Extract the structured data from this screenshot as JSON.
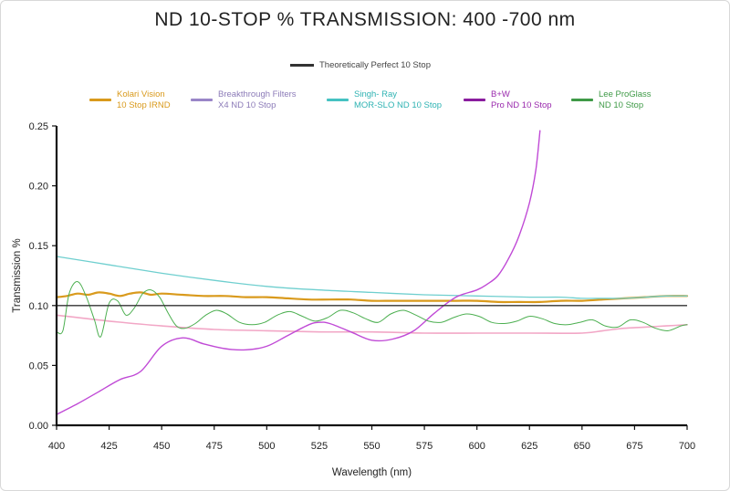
{
  "chart_data": {
    "type": "line",
    "title": "ND 10-STOP % TRANSMISSION: 400 -700 nm",
    "xlabel": "Wavelength (nm)",
    "ylabel": "Transmission %",
    "xlim": [
      400,
      700
    ],
    "ylim": [
      0,
      0.25
    ],
    "x_ticks": [
      400,
      425,
      450,
      475,
      500,
      525,
      550,
      575,
      600,
      625,
      650,
      675,
      700
    ],
    "x_tick_labels": [
      "400",
      "425",
      "450",
      "475",
      "500",
      "525",
      "550",
      "575",
      "600",
      "625",
      "650",
      "675",
      "700"
    ],
    "y_ticks": [
      0,
      0.05,
      0.1,
      0.15,
      0.2,
      0.25
    ],
    "y_tick_labels": [
      "0.00",
      "0.05",
      "0.10",
      "0.15",
      "0.20",
      "0.25"
    ],
    "reference": {
      "name": "Theoretically Perfect 10 Stop",
      "value": 0.1,
      "color": "#333333"
    },
    "series": [
      {
        "name": "Kolari Vision",
        "name2": "10 Stop IRND",
        "color": "#d99a1c",
        "width": 2.2,
        "x": [
          400,
          405,
          410,
          415,
          420,
          425,
          430,
          435,
          440,
          445,
          450,
          460,
          470,
          480,
          490,
          500,
          510,
          520,
          530,
          540,
          550,
          560,
          570,
          580,
          590,
          600,
          610,
          620,
          630,
          640,
          650,
          660,
          670,
          680,
          690,
          700
        ],
        "y": [
          0.107,
          0.108,
          0.11,
          0.109,
          0.111,
          0.11,
          0.108,
          0.11,
          0.111,
          0.109,
          0.11,
          0.109,
          0.108,
          0.108,
          0.107,
          0.107,
          0.106,
          0.105,
          0.105,
          0.105,
          0.104,
          0.104,
          0.104,
          0.104,
          0.104,
          0.104,
          0.103,
          0.103,
          0.103,
          0.104,
          0.104,
          0.105,
          0.106,
          0.107,
          0.108,
          0.108
        ]
      },
      {
        "name": "Breakthrough Filters",
        "name2": "X4 ND 10 Stop",
        "color": "#f2a7c6",
        "width": 1.6,
        "x": [
          400,
          425,
          450,
          475,
          500,
          525,
          550,
          575,
          600,
          625,
          650,
          660,
          670,
          680,
          690,
          700
        ],
        "y": [
          0.092,
          0.087,
          0.083,
          0.08,
          0.079,
          0.078,
          0.078,
          0.077,
          0.077,
          0.077,
          0.077,
          0.079,
          0.081,
          0.082,
          0.083,
          0.084
        ]
      },
      {
        "name": "Singh- Ray",
        "name2": "MOR-SLO ND 10 Stop",
        "color": "#6fcfcf",
        "width": 1.3,
        "x": [
          400,
          425,
          450,
          475,
          500,
          525,
          550,
          575,
          600,
          625,
          640,
          650,
          660,
          670,
          680,
          690,
          700
        ],
        "y": [
          0.141,
          0.134,
          0.127,
          0.121,
          0.116,
          0.113,
          0.111,
          0.109,
          0.108,
          0.107,
          0.107,
          0.106,
          0.106,
          0.106,
          0.107,
          0.108,
          0.108
        ]
      },
      {
        "name": "B+W",
        "name2": "Pro ND 10 Stop",
        "color": "#c04ad6",
        "width": 1.4,
        "x": [
          400,
          410,
          420,
          430,
          440,
          450,
          460,
          470,
          480,
          490,
          500,
          510,
          520,
          525,
          530,
          540,
          550,
          560,
          570,
          580,
          590,
          600,
          605,
          610,
          615,
          620,
          625,
          628,
          630
        ],
        "y": [
          0.009,
          0.018,
          0.028,
          0.038,
          0.045,
          0.066,
          0.073,
          0.068,
          0.064,
          0.063,
          0.066,
          0.075,
          0.084,
          0.086,
          0.085,
          0.078,
          0.071,
          0.072,
          0.079,
          0.094,
          0.107,
          0.113,
          0.118,
          0.125,
          0.139,
          0.158,
          0.186,
          0.213,
          0.246
        ]
      },
      {
        "name": "Lee ProGlass",
        "name2": "ND 10 Stop",
        "color": "#4caf50",
        "width": 1.0,
        "x": [
          400,
          403,
          406,
          410,
          414,
          418,
          421,
          425,
          429,
          433,
          437,
          441,
          445,
          449,
          453,
          457,
          461,
          466,
          471,
          476,
          481,
          487,
          493,
          499,
          505,
          511,
          517,
          523,
          529,
          535,
          541,
          547,
          553,
          559,
          565,
          571,
          577,
          583,
          589,
          595,
          601,
          607,
          613,
          619,
          625,
          631,
          637,
          643,
          649,
          655,
          661,
          667,
          673,
          679,
          685,
          691,
          697,
          700
        ],
        "y": [
          0.078,
          0.079,
          0.11,
          0.12,
          0.108,
          0.088,
          0.074,
          0.102,
          0.104,
          0.092,
          0.098,
          0.11,
          0.113,
          0.107,
          0.094,
          0.083,
          0.081,
          0.085,
          0.092,
          0.096,
          0.093,
          0.086,
          0.084,
          0.086,
          0.092,
          0.095,
          0.091,
          0.087,
          0.09,
          0.096,
          0.094,
          0.089,
          0.086,
          0.093,
          0.096,
          0.092,
          0.087,
          0.086,
          0.09,
          0.093,
          0.091,
          0.086,
          0.085,
          0.087,
          0.091,
          0.089,
          0.085,
          0.084,
          0.086,
          0.088,
          0.083,
          0.082,
          0.088,
          0.086,
          0.081,
          0.079,
          0.083,
          0.084
        ]
      }
    ]
  },
  "legend_top": {
    "label": "Theoretically Perfect 10 Stop",
    "color": "#333333"
  }
}
